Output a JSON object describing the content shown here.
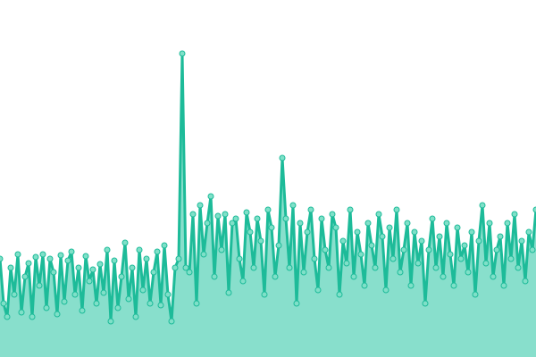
{
  "chart_data": {
    "type": "area",
    "line_color": "#1dbb99",
    "fill_color": "#88dfcc",
    "marker_color": "#7fe0c8",
    "ylim": [
      0,
      400
    ],
    "values": [
      110,
      60,
      45,
      100,
      70,
      115,
      50,
      90,
      105,
      45,
      112,
      80,
      115,
      55,
      110,
      95,
      48,
      114,
      62,
      108,
      118,
      70,
      100,
      52,
      113,
      85,
      98,
      60,
      104,
      72,
      120,
      40,
      108,
      55,
      90,
      128,
      65,
      100,
      45,
      120,
      75,
      110,
      60,
      95,
      118,
      58,
      125,
      70,
      40,
      100,
      110,
      340,
      100,
      95,
      160,
      60,
      170,
      115,
      150,
      180,
      90,
      158,
      120,
      160,
      72,
      150,
      155,
      110,
      85,
      162,
      140,
      100,
      155,
      130,
      70,
      165,
      145,
      90,
      125,
      223,
      155,
      100,
      170,
      60,
      150,
      95,
      140,
      165,
      110,
      75,
      155,
      120,
      100,
      160,
      145,
      70,
      130,
      105,
      165,
      90,
      140,
      115,
      80,
      150,
      125,
      100,
      160,
      135,
      75,
      145,
      110,
      165,
      95,
      120,
      150,
      80,
      140,
      105,
      130,
      60,
      120,
      155,
      100,
      135,
      90,
      150,
      115,
      80,
      145,
      110,
      125,
      95,
      140,
      70,
      130,
      170,
      105,
      150,
      90,
      120,
      135,
      80,
      150,
      110,
      160,
      100,
      130,
      85,
      140,
      120,
      165
    ]
  }
}
